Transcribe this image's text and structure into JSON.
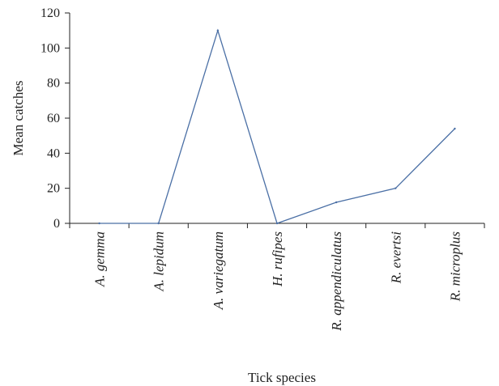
{
  "chart_data": {
    "type": "line",
    "title": "",
    "xlabel": "Tick species",
    "ylabel": "Mean catches",
    "categories": [
      "A. gemma",
      "A. lepidum",
      "A. variegatum",
      "H. rufipes",
      "R. appendiculatus",
      "R. evertsi",
      "R. microplus"
    ],
    "series": [
      {
        "values": [
          0,
          0,
          110,
          0,
          12,
          20,
          54
        ]
      }
    ],
    "ylim": [
      0,
      120
    ],
    "yticks": [
      "0",
      "20",
      "40",
      "60",
      "80",
      "100",
      "120"
    ],
    "grid": false,
    "legend": "none",
    "colors": {
      "line": "#4a6fa5",
      "axis": "#222222"
    }
  }
}
